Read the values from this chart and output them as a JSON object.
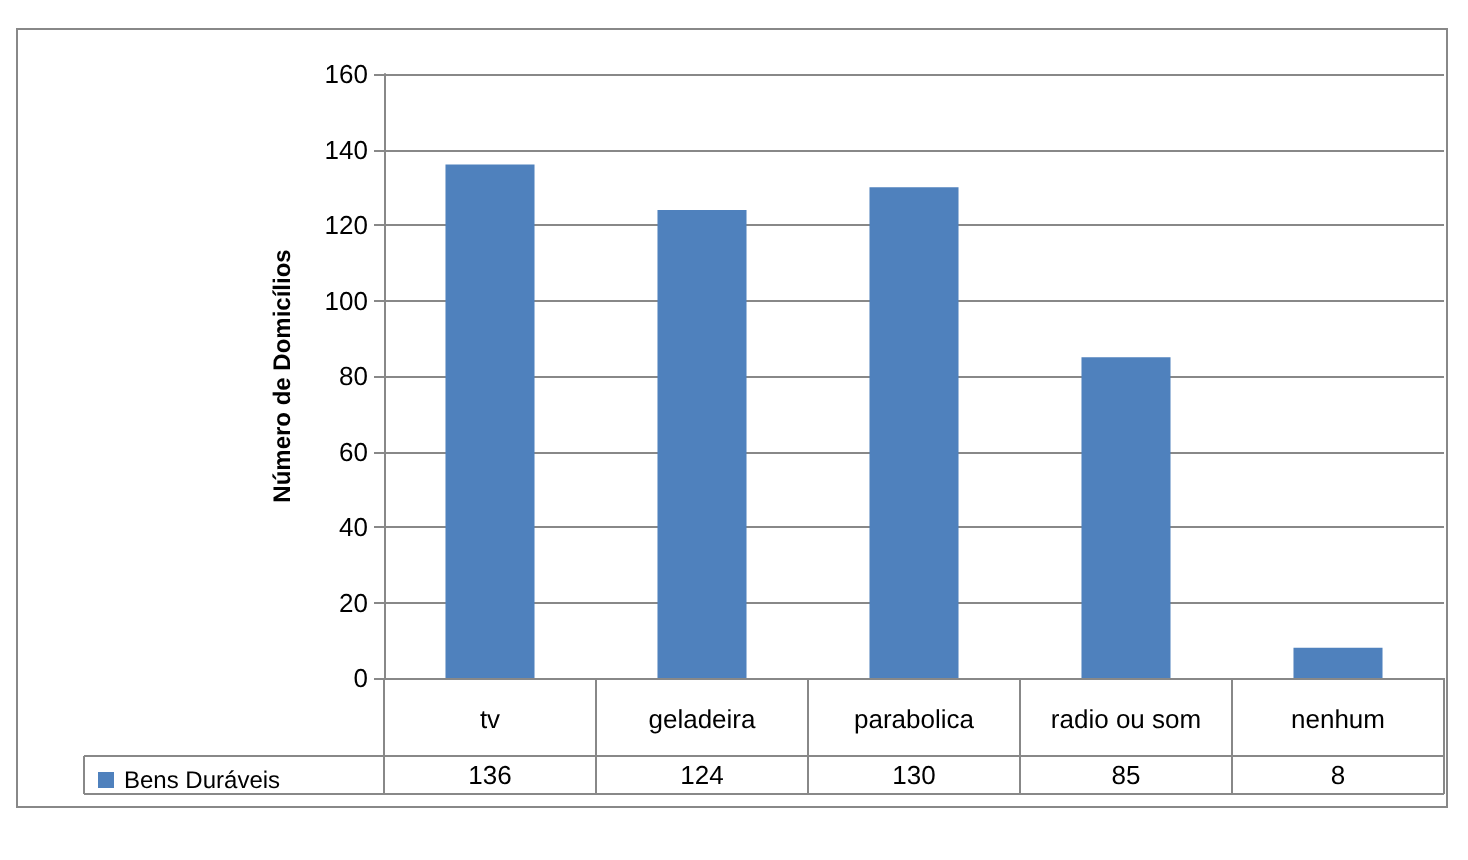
{
  "chart_data": {
    "type": "bar",
    "ylabel": "Número de Domicílios",
    "categories": [
      "tv",
      "geladeira",
      "parabolica",
      "radio ou som",
      "nenhum"
    ],
    "series": [
      {
        "name": "Bens Duráveis",
        "color": "#4f81bd",
        "values": [
          136,
          124,
          130,
          85,
          8
        ]
      }
    ],
    "ylim": [
      0,
      160
    ],
    "yticks": [
      0,
      20,
      40,
      60,
      80,
      100,
      120,
      140,
      160
    ],
    "grid": "y",
    "legend": "bottom",
    "data_labels": true
  }
}
